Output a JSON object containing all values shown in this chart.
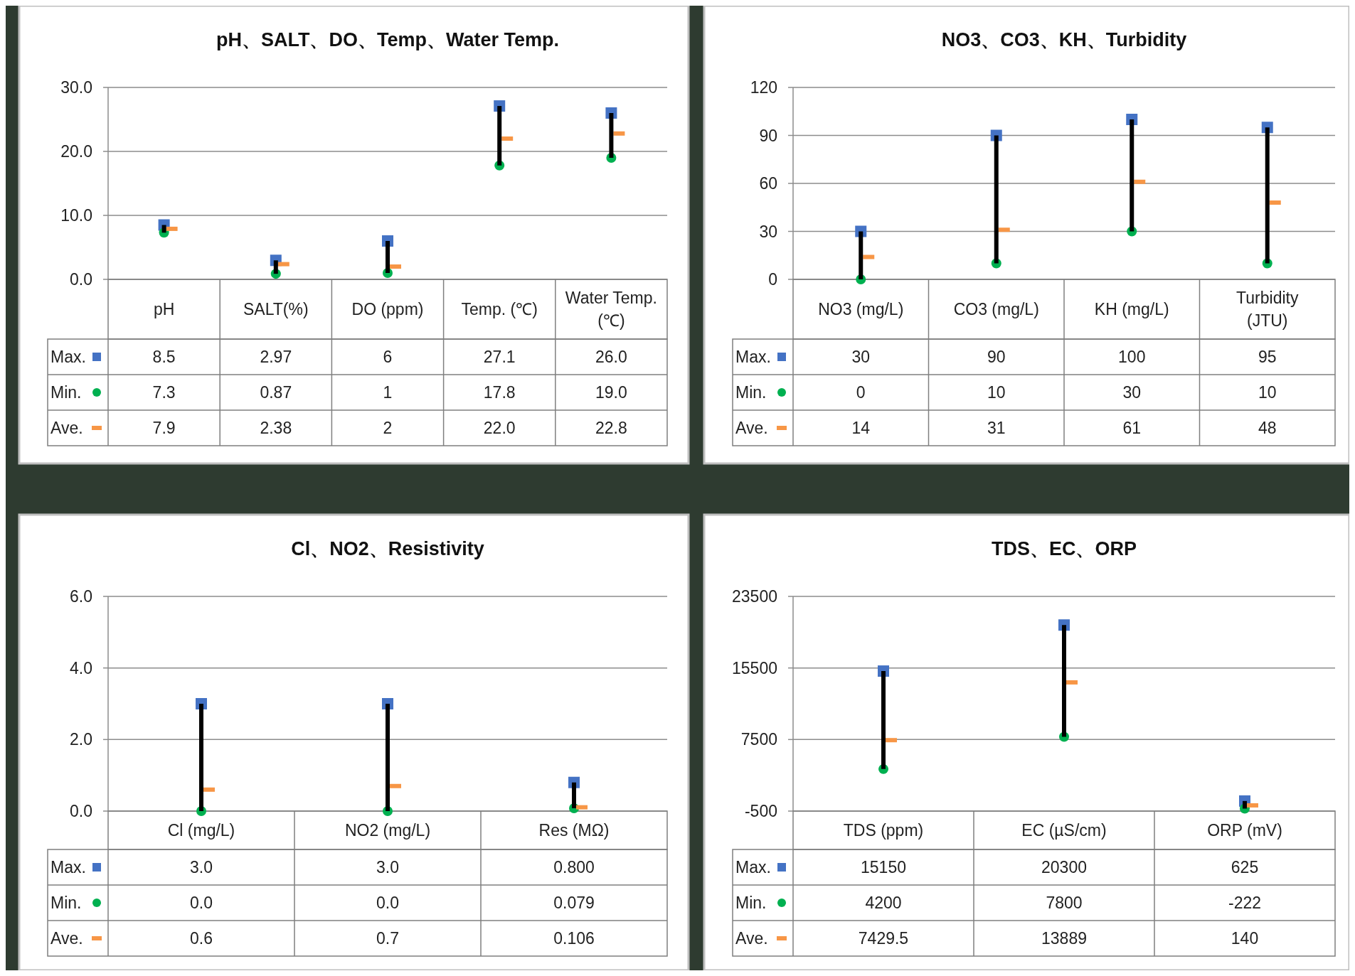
{
  "chart_data": [
    {
      "type": "scatter",
      "legend": "left",
      "title": "pH、SALT、DO、Temp、Water Temp.",
      "categories": [
        "pH",
        "SALT(%)",
        "DO (ppm)",
        "Temp. (℃)",
        "Water Temp. (℃)"
      ],
      "ylim": [
        0,
        30
      ],
      "yticks": [
        {
          "value": 0,
          "label": "0.0"
        },
        {
          "value": 10,
          "label": "10.0"
        },
        {
          "value": 20,
          "label": "20.0"
        },
        {
          "value": 30,
          "label": "30.0"
        }
      ],
      "grid": "y",
      "series": [
        {
          "name": "Max.",
          "color": "#4472c4",
          "marker": "square",
          "values": [
            8.5,
            2.97,
            6,
            27.1,
            26.0
          ],
          "value_labels": [
            "8.5",
            "2.97",
            "6",
            "27.1",
            "26.0"
          ]
        },
        {
          "name": "Min.",
          "color": "#00b050",
          "marker": "circle",
          "values": [
            7.3,
            0.87,
            1,
            17.8,
            19.0
          ],
          "value_labels": [
            "7.3",
            "0.87",
            "1",
            "17.8",
            "19.0"
          ]
        },
        {
          "name": "Ave.",
          "color": "#f79646",
          "values": [
            7.9,
            2.38,
            2,
            22.0,
            22.8
          ],
          "value_labels": [
            "7.9",
            "2.38",
            "2",
            "22.0",
            "22.8"
          ]
        },
        {
          "type": "line",
          "color": "#000000",
          "x": [
            "pH",
            "pH"
          ],
          "values": [
            7.3,
            8.5
          ]
        },
        {
          "type": "line",
          "color": "#000000",
          "x": [
            "SALT(%)",
            "SALT(%)"
          ],
          "values": [
            0.87,
            2.97
          ]
        },
        {
          "type": "line",
          "color": "#000000",
          "x": [
            "DO (ppm)",
            "DO (ppm)"
          ],
          "values": [
            1,
            6
          ]
        },
        {
          "type": "line",
          "color": "#000000",
          "x": [
            "Temp. (℃)",
            "Temp. (℃)"
          ],
          "values": [
            17.8,
            27.1
          ]
        },
        {
          "type": "line",
          "color": "#000000",
          "x": [
            "Water Temp. (℃)",
            "Water Temp. (℃)"
          ],
          "values": [
            19.0,
            26.0
          ]
        }
      ]
    },
    {
      "type": "scatter",
      "legend": "left",
      "title": "NO3、CO3、KH、Turbidity",
      "categories": [
        "NO3 (mg/L)",
        "CO3 (mg/L)",
        "KH (mg/L)",
        "Turbidity (JTU)"
      ],
      "ylim": [
        0,
        120
      ],
      "yticks": [
        0,
        30,
        60,
        90,
        120
      ],
      "grid": "y",
      "series": [
        {
          "name": "Max.",
          "color": "#4472c4",
          "marker": "square",
          "values": [
            30,
            90,
            100,
            95
          ],
          "value_labels": [
            "30",
            "90",
            "100",
            "95"
          ]
        },
        {
          "name": "Min.",
          "color": "#00b050",
          "marker": "circle",
          "values": [
            0,
            10,
            30,
            10
          ],
          "value_labels": [
            "0",
            "10",
            "30",
            "10"
          ]
        },
        {
          "name": "Ave.",
          "color": "#f79646",
          "values": [
            14,
            31,
            61,
            48
          ],
          "value_labels": [
            "14",
            "31",
            "61",
            "48"
          ]
        },
        {
          "type": "line",
          "color": "#000000",
          "x": [
            "NO3 (mg/L)",
            "NO3 (mg/L)"
          ],
          "values": [
            0,
            30
          ]
        },
        {
          "type": "line",
          "color": "#000000",
          "x": [
            "CO3 (mg/L)",
            "CO3 (mg/L)"
          ],
          "values": [
            10,
            90
          ]
        },
        {
          "type": "line",
          "color": "#000000",
          "x": [
            "KH (mg/L)",
            "KH (mg/L)"
          ],
          "values": [
            30,
            100
          ]
        },
        {
          "type": "line",
          "color": "#000000",
          "x": [
            "Turbidity (JTU)",
            "Turbidity (JTU)"
          ],
          "values": [
            10,
            95
          ]
        }
      ]
    },
    {
      "type": "scatter",
      "legend": "left",
      "title": "Cl、NO2、Resistivity",
      "categories": [
        "Cl (mg/L)",
        "NO2 (mg/L)",
        "Res (MΩ)"
      ],
      "ylim": [
        0,
        6
      ],
      "yticks": [
        {
          "value": 0,
          "label": "0.0"
        },
        {
          "value": 2,
          "label": "2.0"
        },
        {
          "value": 4,
          "label": "4.0"
        },
        {
          "value": 6,
          "label": "6.0"
        }
      ],
      "grid": "y",
      "series": [
        {
          "name": "Max.",
          "color": "#4472c4",
          "marker": "square",
          "values": [
            3.0,
            3.0,
            0.8
          ],
          "value_labels": [
            "3.0",
            "3.0",
            "0.800"
          ]
        },
        {
          "name": "Min.",
          "color": "#00b050",
          "marker": "circle",
          "values": [
            0.0,
            0.0,
            0.079
          ],
          "value_labels": [
            "0.0",
            "0.0",
            "0.079"
          ]
        },
        {
          "name": "Ave.",
          "color": "#f79646",
          "values": [
            0.6,
            0.7,
            0.106
          ],
          "value_labels": [
            "0.6",
            "0.7",
            "0.106"
          ]
        },
        {
          "type": "line",
          "color": "#000000",
          "x": [
            "Cl (mg/L)",
            "Cl (mg/L)"
          ],
          "values": [
            0.0,
            3.0
          ]
        },
        {
          "type": "line",
          "color": "#000000",
          "x": [
            "NO2 (mg/L)",
            "NO2 (mg/L)"
          ],
          "values": [
            0.0,
            3.0
          ]
        },
        {
          "type": "line",
          "color": "#000000",
          "x": [
            "Res (MΩ)",
            "Res (MΩ)"
          ],
          "values": [
            0.079,
            0.8
          ]
        }
      ]
    },
    {
      "type": "scatter",
      "legend": "left",
      "title": "TDS、EC、ORP",
      "categories": [
        "TDS (ppm)",
        "EC (µS/cm)",
        "ORP (mV)"
      ],
      "ylim": [
        -500,
        23500
      ],
      "yticks": [
        -500,
        7500,
        15500,
        23500
      ],
      "grid": "y",
      "series": [
        {
          "name": "Max.",
          "color": "#4472c4",
          "marker": "square",
          "values": [
            15150,
            20300,
            625
          ],
          "value_labels": [
            "15150",
            "20300",
            "625"
          ]
        },
        {
          "name": "Min.",
          "color": "#00b050",
          "marker": "circle",
          "values": [
            4200,
            7800,
            -222
          ],
          "value_labels": [
            "4200",
            "7800",
            "-222"
          ]
        },
        {
          "name": "Ave.",
          "color": "#f79646",
          "values": [
            7429.5,
            13889,
            140
          ],
          "value_labels": [
            "7429.5",
            "13889",
            "140"
          ]
        },
        {
          "type": "line",
          "color": "#000000",
          "x": [
            "TDS (ppm)",
            "TDS (ppm)"
          ],
          "values": [
            4200,
            15150
          ]
        },
        {
          "type": "line",
          "color": "#000000",
          "x": [
            "EC (µS/cm)",
            "EC (µS/cm)"
          ],
          "values": [
            7800,
            20300
          ]
        },
        {
          "type": "line",
          "color": "#000000",
          "x": [
            "ORP (mV)",
            "ORP (mV)"
          ],
          "values": [
            -222,
            625
          ]
        }
      ]
    }
  ]
}
